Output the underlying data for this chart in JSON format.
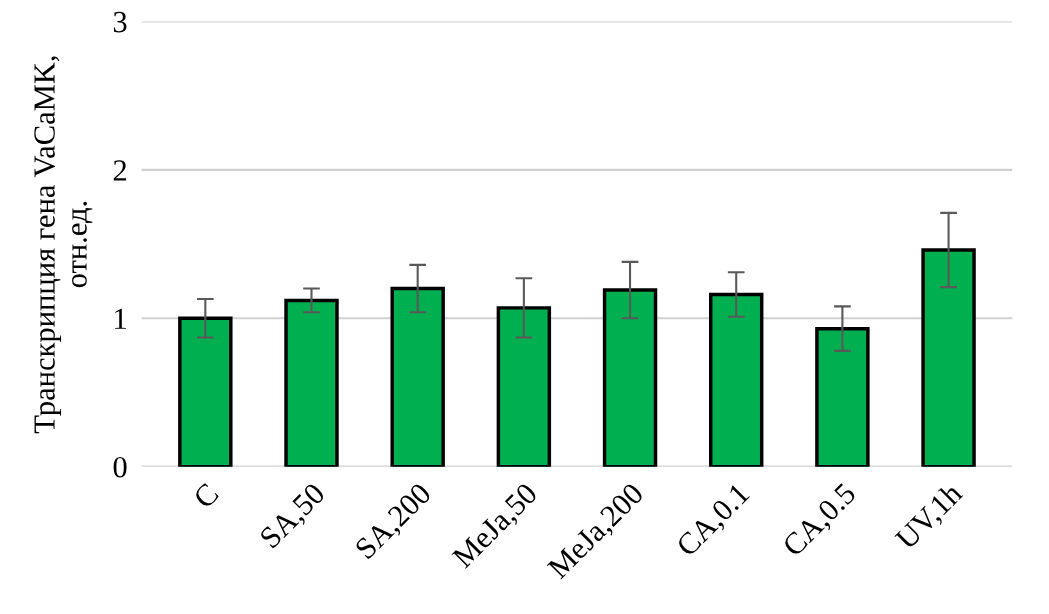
{
  "chart_data": {
    "type": "bar",
    "ylabel": "Транскрипция гена VaCaMK,\nотн.ед.",
    "categories": [
      "C",
      "SA,50",
      "SA,200",
      "MeJa,50",
      "MeJa,200",
      "CA,0.1",
      "CA,0.5",
      "UV,1h"
    ],
    "values": [
      1.0,
      1.12,
      1.2,
      1.07,
      1.19,
      1.16,
      0.93,
      1.46
    ],
    "errors": [
      0.13,
      0.08,
      0.16,
      0.2,
      0.19,
      0.15,
      0.15,
      0.25
    ],
    "color": "#00b050",
    "ylim": [
      0,
      3
    ],
    "yticks": [
      0,
      1,
      2,
      3
    ],
    "grid": "y"
  }
}
